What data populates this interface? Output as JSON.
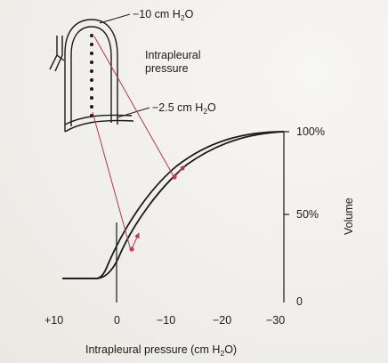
{
  "diagram": {
    "labels": {
      "top_pressure": "−10 cm H",
      "top_pressure_sub": "2",
      "top_pressure_suffix": "O",
      "intrapleural_line1": "Intrapleural",
      "intrapleural_line2": "pressure",
      "base_pressure": "−2.5 cm H",
      "base_pressure_sub": "2",
      "base_pressure_suffix": "O"
    },
    "x_axis": {
      "title_prefix": "Intrapleural pressure (cm H",
      "title_sub": "2",
      "title_suffix": "O)",
      "ticks": [
        "+10",
        "0",
        "−10",
        "−20",
        "−30"
      ]
    },
    "y_axis": {
      "title": "Volume",
      "ticks": [
        "100%",
        "50%",
        "0"
      ]
    },
    "colors": {
      "curve": "#1a1a1a",
      "arrow": "#b0384a",
      "point": "#c23b4e",
      "dots": "#1a1a1a"
    }
  }
}
